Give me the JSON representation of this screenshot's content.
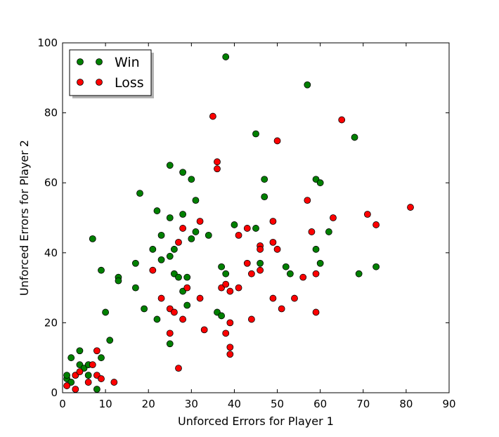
{
  "chart_data": {
    "type": "scatter",
    "xlabel": "Unforced Errors for Player 1",
    "ylabel": "Unforced Errors for Player 2",
    "xlim": [
      0,
      90
    ],
    "ylim": [
      0,
      100
    ],
    "xticks": [
      "0",
      "10",
      "20",
      "30",
      "40",
      "50",
      "60",
      "70",
      "80",
      "90"
    ],
    "yticks": [
      "0",
      "20",
      "40",
      "60",
      "80",
      "100"
    ],
    "grid": false,
    "legend_position": "top-left",
    "series": [
      {
        "name": "Win",
        "color": "#008000",
        "points": [
          [
            1,
            4
          ],
          [
            1,
            5
          ],
          [
            2,
            3
          ],
          [
            2,
            10
          ],
          [
            3,
            5
          ],
          [
            4,
            8
          ],
          [
            4,
            12
          ],
          [
            5,
            7
          ],
          [
            6,
            5
          ],
          [
            6,
            8
          ],
          [
            7,
            44
          ],
          [
            8,
            1
          ],
          [
            9,
            10
          ],
          [
            9,
            35
          ],
          [
            10,
            23
          ],
          [
            11,
            15
          ],
          [
            13,
            33
          ],
          [
            13,
            32
          ],
          [
            17,
            37
          ],
          [
            17,
            30
          ],
          [
            18,
            57
          ],
          [
            19,
            24
          ],
          [
            21,
            41
          ],
          [
            22,
            52
          ],
          [
            22,
            21
          ],
          [
            23,
            38
          ],
          [
            23,
            45
          ],
          [
            25,
            65
          ],
          [
            25,
            50
          ],
          [
            25,
            39
          ],
          [
            25,
            14
          ],
          [
            26,
            41
          ],
          [
            26,
            34
          ],
          [
            27,
            33
          ],
          [
            28,
            63
          ],
          [
            28,
            51
          ],
          [
            28,
            29
          ],
          [
            29,
            33
          ],
          [
            29,
            25
          ],
          [
            30,
            61
          ],
          [
            30,
            44
          ],
          [
            31,
            55
          ],
          [
            31,
            46
          ],
          [
            34,
            45
          ],
          [
            36,
            23
          ],
          [
            37,
            36
          ],
          [
            37,
            22
          ],
          [
            38,
            96
          ],
          [
            38,
            34
          ],
          [
            40,
            48
          ],
          [
            45,
            74
          ],
          [
            45,
            47
          ],
          [
            46,
            37
          ],
          [
            47,
            61
          ],
          [
            47,
            56
          ],
          [
            52,
            36
          ],
          [
            53,
            34
          ],
          [
            57,
            88
          ],
          [
            59,
            61
          ],
          [
            59,
            41
          ],
          [
            60,
            60
          ],
          [
            60,
            37
          ],
          [
            62,
            46
          ],
          [
            68,
            73
          ],
          [
            69,
            34
          ],
          [
            73,
            36
          ]
        ]
      },
      {
        "name": "Loss",
        "color": "#ff0000",
        "points": [
          [
            1,
            2
          ],
          [
            3,
            1
          ],
          [
            3,
            5
          ],
          [
            4,
            6
          ],
          [
            6,
            3
          ],
          [
            7,
            8
          ],
          [
            8,
            12
          ],
          [
            8,
            5
          ],
          [
            9,
            4
          ],
          [
            12,
            3
          ],
          [
            21,
            35
          ],
          [
            23,
            27
          ],
          [
            25,
            24
          ],
          [
            25,
            17
          ],
          [
            26,
            23
          ],
          [
            27,
            7
          ],
          [
            27,
            43
          ],
          [
            28,
            47
          ],
          [
            28,
            21
          ],
          [
            29,
            30
          ],
          [
            32,
            49
          ],
          [
            32,
            27
          ],
          [
            33,
            18
          ],
          [
            35,
            79
          ],
          [
            36,
            66
          ],
          [
            36,
            64
          ],
          [
            37,
            30
          ],
          [
            38,
            31
          ],
          [
            38,
            17
          ],
          [
            39,
            29
          ],
          [
            39,
            20
          ],
          [
            39,
            13
          ],
          [
            39,
            11
          ],
          [
            41,
            45
          ],
          [
            41,
            30
          ],
          [
            43,
            47
          ],
          [
            43,
            37
          ],
          [
            44,
            34
          ],
          [
            44,
            21
          ],
          [
            46,
            42
          ],
          [
            46,
            41
          ],
          [
            46,
            35
          ],
          [
            49,
            49
          ],
          [
            49,
            43
          ],
          [
            49,
            27
          ],
          [
            50,
            72
          ],
          [
            50,
            41
          ],
          [
            51,
            24
          ],
          [
            54,
            27
          ],
          [
            56,
            33
          ],
          [
            57,
            55
          ],
          [
            58,
            46
          ],
          [
            59,
            34
          ],
          [
            59,
            23
          ],
          [
            63,
            50
          ],
          [
            65,
            78
          ],
          [
            71,
            51
          ],
          [
            73,
            48
          ],
          [
            81,
            53
          ]
        ]
      }
    ]
  }
}
